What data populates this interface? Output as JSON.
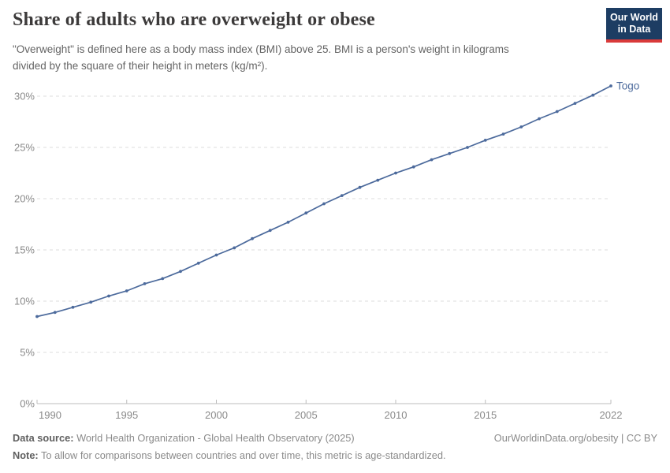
{
  "header": {
    "title": "Share of adults who are overweight or obese",
    "subtitle": "\"Overweight\" is defined here as a body mass index (BMI) above 25. BMI is a person's weight in kilograms divided by the square of their height in meters (kg/m²).",
    "logo": {
      "line1": "Our World",
      "line2": "in Data"
    }
  },
  "chart_data": {
    "type": "line",
    "title": "Share of adults who are overweight or obese",
    "x": [
      1990,
      1991,
      1992,
      1993,
      1994,
      1995,
      1996,
      1997,
      1998,
      1999,
      2000,
      2001,
      2002,
      2003,
      2004,
      2005,
      2006,
      2007,
      2008,
      2009,
      2010,
      2011,
      2012,
      2013,
      2014,
      2015,
      2016,
      2017,
      2018,
      2019,
      2020,
      2021,
      2022
    ],
    "series": [
      {
        "name": "Togo",
        "color": "#4c6a9c",
        "values": [
          8.5,
          8.9,
          9.4,
          9.9,
          10.5,
          11.0,
          11.7,
          12.2,
          12.9,
          13.7,
          14.5,
          15.2,
          16.1,
          16.9,
          17.7,
          18.6,
          19.5,
          20.3,
          21.1,
          21.8,
          22.5,
          23.1,
          23.8,
          24.4,
          25.0,
          25.7,
          26.3,
          27.0,
          27.8,
          28.5,
          29.3,
          30.1,
          31.0
        ]
      }
    ],
    "xlabel": "",
    "ylabel": "",
    "ylim": [
      0,
      31
    ],
    "yticks": [
      0,
      5,
      10,
      15,
      20,
      25,
      30
    ],
    "ytick_suffix": "%",
    "xticks": [
      1990,
      1995,
      2000,
      2005,
      2010,
      2015,
      2022
    ],
    "grid": "horizontal-dashed",
    "legend": "line-end-label"
  },
  "colors": {
    "line": "#4c6a9c",
    "grid": "#dedede",
    "axis": "#bcbcbc",
    "tick_text": "#8a8a8a",
    "logo_bg": "#1d3d63",
    "logo_bar": "#d93a3a"
  },
  "footer": {
    "datasource_label": "Data source:",
    "datasource_text": " World Health Organization - Global Health Observatory (2025)",
    "license": "OurWorldinData.org/obesity | CC BY",
    "note_label": "Note:",
    "note_text": " To allow for comparisons between countries and over time, this metric is age-standardized."
  }
}
